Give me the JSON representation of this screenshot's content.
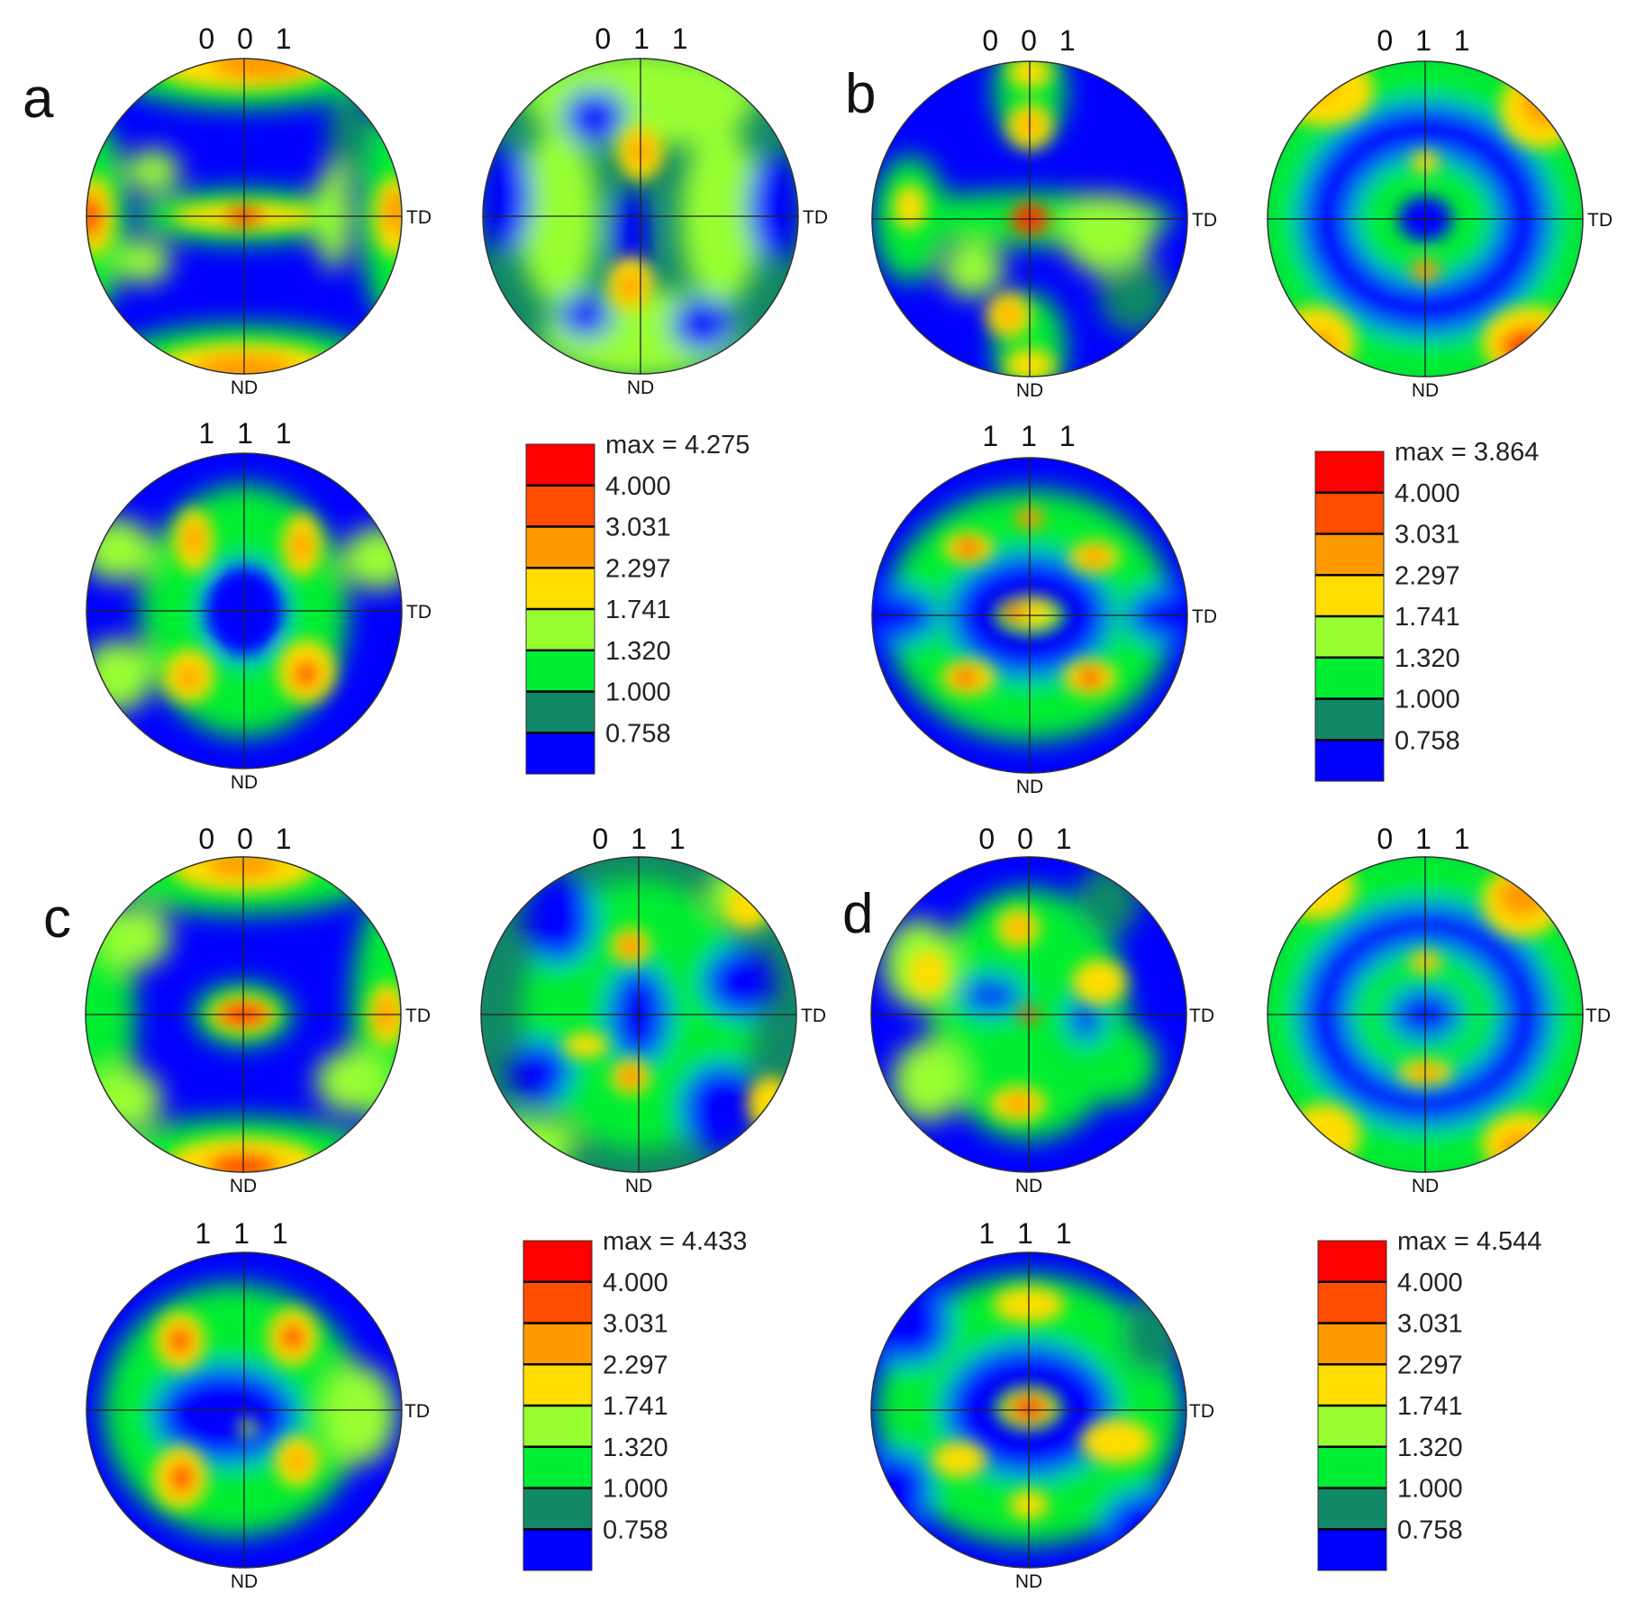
{
  "panels": [
    {
      "label": "a",
      "pole_figures": [
        {
          "title": "0 0 1",
          "td_label": "TD",
          "nd_label": "ND"
        },
        {
          "title": "0 1 1",
          "td_label": "TD",
          "nd_label": "ND"
        },
        {
          "title": "1 1 1",
          "td_label": "TD",
          "nd_label": "ND"
        }
      ],
      "legend": {
        "max_label": "max = 4.275",
        "levels": [
          "4.000",
          "3.031",
          "2.297",
          "1.741",
          "1.320",
          "1.000",
          "0.758"
        ]
      }
    },
    {
      "label": "b",
      "pole_figures": [
        {
          "title": "0 0 1",
          "td_label": "TD",
          "nd_label": "ND"
        },
        {
          "title": "0 1 1",
          "td_label": "TD",
          "nd_label": "ND"
        },
        {
          "title": "1 1 1",
          "td_label": "TD",
          "nd_label": "ND"
        }
      ],
      "legend": {
        "max_label": "max = 3.864",
        "levels": [
          "4.000",
          "3.031",
          "2.297",
          "1.741",
          "1.320",
          "1.000",
          "0.758"
        ]
      }
    },
    {
      "label": "c",
      "pole_figures": [
        {
          "title": "0 0 1",
          "td_label": "TD",
          "nd_label": "ND"
        },
        {
          "title": "0 1 1",
          "td_label": "TD",
          "nd_label": "ND"
        },
        {
          "title": "1 1 1",
          "td_label": "TD",
          "nd_label": "ND"
        }
      ],
      "legend": {
        "max_label": "max = 4.433",
        "levels": [
          "4.000",
          "3.031",
          "2.297",
          "1.741",
          "1.320",
          "1.000",
          "0.758"
        ]
      }
    },
    {
      "label": "d",
      "pole_figures": [
        {
          "title": "0 0 1",
          "td_label": "TD",
          "nd_label": "ND"
        },
        {
          "title": "0 1 1",
          "td_label": "TD",
          "nd_label": "ND"
        },
        {
          "title": "1 1 1",
          "td_label": "TD",
          "nd_label": "ND"
        }
      ],
      "legend": {
        "max_label": "max = 4.544",
        "levels": [
          "4.000",
          "3.031",
          "2.297",
          "1.741",
          "1.320",
          "1.000",
          "0.758"
        ]
      }
    }
  ],
  "colors": {
    "red": "#ff0000",
    "orange_red": "#ff4d00",
    "orange": "#ff9900",
    "yellow": "#ffdd00",
    "yellow_green": "#99ff33",
    "green": "#00ee33",
    "teal": "#118866",
    "blue": "#0000ff"
  }
}
